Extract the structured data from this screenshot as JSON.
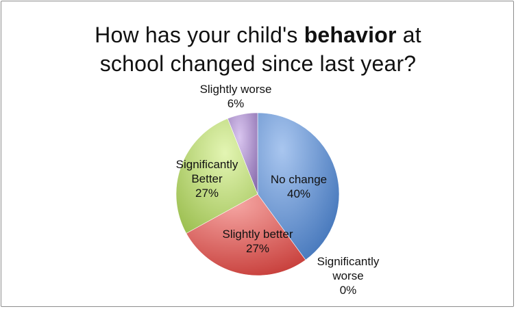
{
  "chart_data": {
    "type": "pie",
    "title": {
      "part1": "How has your child's ",
      "bold": "behavior",
      "part2": " at",
      "line2": "school changed since last year?"
    },
    "slices": [
      {
        "label": "No change",
        "value": 40,
        "display": "40%",
        "color": "#4f81bd"
      },
      {
        "label": "Significantly worse",
        "value": 0,
        "display": "0%",
        "color": "#2c4d75"
      },
      {
        "label": "Slightly better",
        "value": 27,
        "display": "27%",
        "color": "#c0504d"
      },
      {
        "label": "Significantly Better",
        "value": 27,
        "display": "27%",
        "color": "#9bbb59"
      },
      {
        "label": "Slightly worse",
        "value": 6,
        "display": "6%",
        "color": "#8064a2"
      }
    ],
    "start_angle_deg": 0,
    "direction": "clockwise"
  }
}
